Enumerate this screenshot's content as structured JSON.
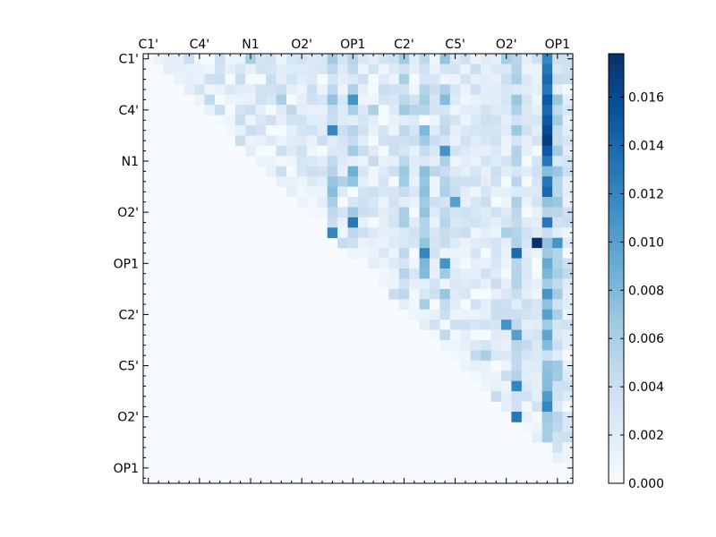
{
  "chart_data": {
    "type": "heatmap",
    "title": "",
    "xlabel": "",
    "ylabel": "",
    "n_rows": 42,
    "n_cols": 42,
    "triangle": "upper",
    "x_tick_labels": [
      "C1'",
      "C4'",
      "N1",
      "O2'",
      "OP1",
      "C2'",
      "C5'",
      "O2'",
      "OP1"
    ],
    "y_tick_labels": [
      "C1'",
      "C4'",
      "N1",
      "O2'",
      "OP1",
      "C2'",
      "C5'",
      "O2'",
      "OP1"
    ],
    "x_tick_indices": [
      0,
      5,
      10,
      15,
      20,
      25,
      30,
      35,
      40
    ],
    "y_tick_indices": [
      0,
      5,
      10,
      15,
      20,
      25,
      30,
      35,
      40
    ],
    "colorbar": {
      "colormap": "Blues",
      "vmin": 0.0,
      "vmax": 0.0178,
      "ticks": [
        0.0,
        0.002,
        0.004,
        0.006,
        0.008,
        0.01,
        0.012,
        0.014,
        0.016
      ],
      "tick_labels": [
        "0.000",
        "0.002",
        "0.004",
        "0.006",
        "0.008",
        "0.010",
        "0.012",
        "0.014",
        "0.016"
      ]
    },
    "strong_cells": [
      {
        "row": 0,
        "col": 39,
        "value": 0.012
      },
      {
        "row": 1,
        "col": 39,
        "value": 0.013
      },
      {
        "row": 2,
        "col": 39,
        "value": 0.014
      },
      {
        "row": 3,
        "col": 39,
        "value": 0.013
      },
      {
        "row": 4,
        "col": 39,
        "value": 0.015
      },
      {
        "row": 5,
        "col": 39,
        "value": 0.014
      },
      {
        "row": 6,
        "col": 39,
        "value": 0.015
      },
      {
        "row": 7,
        "col": 39,
        "value": 0.016
      },
      {
        "row": 8,
        "col": 39,
        "value": 0.017
      },
      {
        "row": 9,
        "col": 39,
        "value": 0.015
      },
      {
        "row": 10,
        "col": 39,
        "value": 0.013
      },
      {
        "row": 12,
        "col": 39,
        "value": 0.013
      },
      {
        "row": 13,
        "col": 39,
        "value": 0.014
      },
      {
        "row": 16,
        "col": 39,
        "value": 0.013
      },
      {
        "row": 18,
        "col": 38,
        "value": 0.0178
      },
      {
        "row": 18,
        "col": 40,
        "value": 0.011
      },
      {
        "row": 4,
        "col": 20,
        "value": 0.011
      },
      {
        "row": 7,
        "col": 18,
        "value": 0.012
      },
      {
        "row": 16,
        "col": 20,
        "value": 0.013
      },
      {
        "row": 17,
        "col": 18,
        "value": 0.012
      },
      {
        "row": 19,
        "col": 27,
        "value": 0.012
      },
      {
        "row": 19,
        "col": 36,
        "value": 0.014
      },
      {
        "row": 20,
        "col": 29,
        "value": 0.011
      },
      {
        "row": 9,
        "col": 29,
        "value": 0.011
      },
      {
        "row": 14,
        "col": 30,
        "value": 0.01
      },
      {
        "row": 26,
        "col": 35,
        "value": 0.011
      },
      {
        "row": 27,
        "col": 36,
        "value": 0.01
      },
      {
        "row": 32,
        "col": 36,
        "value": 0.012
      },
      {
        "row": 35,
        "col": 36,
        "value": 0.013
      },
      {
        "row": 34,
        "col": 39,
        "value": 0.012
      }
    ]
  }
}
